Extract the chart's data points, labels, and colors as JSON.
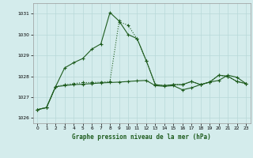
{
  "title": "Graphe pression niveau de la mer (hPa)",
  "bg_color": "#d4ecec",
  "grid_color": "#b8d8d8",
  "line_color": "#1e5c1e",
  "ylim": [
    1025.75,
    1031.5
  ],
  "yticks": [
    1026,
    1027,
    1028,
    1029,
    1030,
    1031
  ],
  "xlim": [
    -0.5,
    23.5
  ],
  "xticks": [
    0,
    1,
    2,
    3,
    4,
    5,
    6,
    7,
    8,
    9,
    10,
    11,
    12,
    13,
    14,
    15,
    16,
    17,
    18,
    19,
    20,
    21,
    22,
    23
  ],
  "s1": [
    1026.4,
    1026.5,
    1027.5,
    1028.4,
    1028.65,
    1028.85,
    1029.3,
    1029.55,
    1031.05,
    1030.65,
    1030.0,
    1029.8,
    1028.75,
    1027.6,
    1027.55,
    1027.6,
    1027.6,
    1027.75,
    1027.6,
    1027.72,
    1028.05,
    1028.0,
    1027.75,
    1027.65
  ],
  "s2": [
    1026.4,
    1026.5,
    1027.5,
    1027.6,
    1027.65,
    1027.7,
    1027.7,
    1027.72,
    1027.75,
    1030.6,
    1030.45,
    1029.78,
    1028.75,
    1027.6,
    1027.55,
    1027.6,
    1027.6,
    1027.75,
    1027.6,
    1027.72,
    1028.05,
    1028.0,
    1027.75,
    1027.65
  ],
  "s3": [
    1026.4,
    1026.5,
    1027.5,
    1027.55,
    1027.6,
    1027.62,
    1027.65,
    1027.68,
    1027.7,
    1027.72,
    1027.75,
    1027.78,
    1027.8,
    1027.55,
    1027.52,
    1027.55,
    1027.35,
    1027.45,
    1027.6,
    1027.72,
    1027.8,
    1028.05,
    1027.95,
    1027.65
  ]
}
